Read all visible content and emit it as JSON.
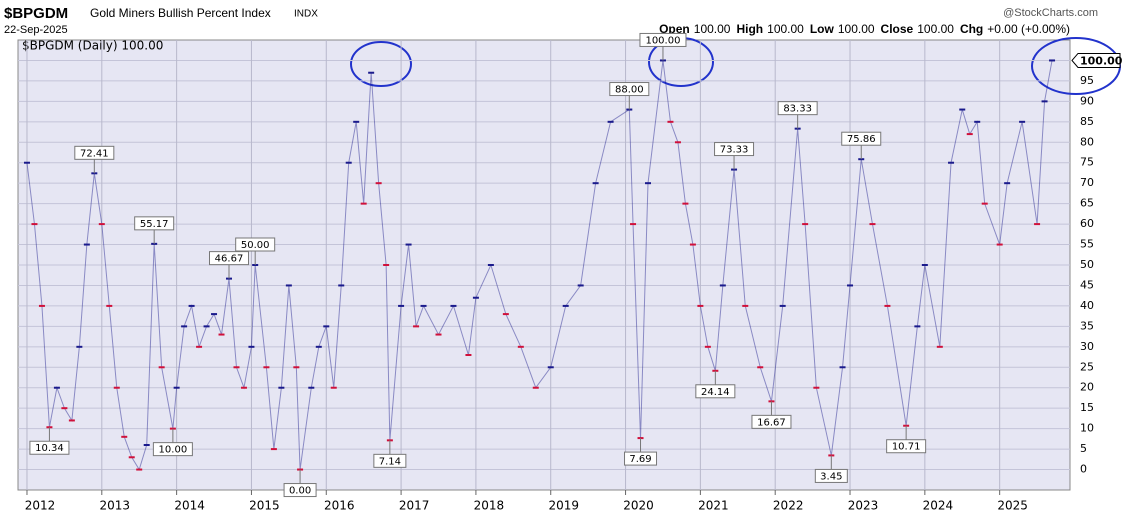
{
  "chart_data": {
    "type": "dash",
    "symbol": "$BPGDM",
    "title": "Gold Miners Bullish Percent Index",
    "exchange": "INDX",
    "date": "22-Sep-2025",
    "source": "@StockCharts.com",
    "quote": [
      [
        "Open",
        "100.00"
      ],
      [
        "High",
        "100.00"
      ],
      [
        "Low",
        "100.00"
      ],
      [
        "Close",
        "100.00"
      ],
      [
        "Chg",
        "+0.00 (+0.00%)"
      ]
    ],
    "legend_label": "$BPGDM (Daily) 100.00",
    "last_value": 100,
    "last_value_label": "100.00",
    "color": "#1a1a8c",
    "x": [
      2012.0,
      2012.1,
      2012.2,
      2012.3,
      2012.4,
      2012.5,
      2012.6,
      2012.7,
      2012.8,
      2012.9,
      2013.0,
      2013.1,
      2013.2,
      2013.3,
      2013.4,
      2013.5,
      2013.6,
      2013.7,
      2013.8,
      2013.95,
      2014.0,
      2014.1,
      2014.2,
      2014.3,
      2014.4,
      2014.5,
      2014.6,
      2014.7,
      2014.8,
      2014.9,
      2015.0,
      2015.05,
      2015.2,
      2015.3,
      2015.4,
      2015.5,
      2015.6,
      2015.65,
      2015.8,
      2015.9,
      2016.0,
      2016.1,
      2016.2,
      2016.3,
      2016.4,
      2016.5,
      2016.6,
      2016.7,
      2016.8,
      2016.85,
      2017.0,
      2017.1,
      2017.2,
      2017.3,
      2017.5,
      2017.7,
      2017.9,
      2018.0,
      2018.2,
      2018.4,
      2018.6,
      2018.8,
      2019.0,
      2019.2,
      2019.4,
      2019.6,
      2019.8,
      2020.05,
      2020.1,
      2020.2,
      2020.3,
      2020.5,
      2020.6,
      2020.7,
      2020.8,
      2020.9,
      2021.0,
      2021.1,
      2021.2,
      2021.3,
      2021.45,
      2021.6,
      2021.8,
      2021.95,
      2022.1,
      2022.3,
      2022.4,
      2022.55,
      2022.75,
      2022.9,
      2023.0,
      2023.15,
      2023.3,
      2023.5,
      2023.75,
      2023.9,
      2024.0,
      2024.2,
      2024.35,
      2024.5,
      2024.6,
      2024.7,
      2024.8,
      2025.0,
      2025.1,
      2025.3,
      2025.5,
      2025.6,
      2025.7
    ],
    "values": [
      75,
      60,
      40,
      10.34,
      20,
      15,
      12,
      30,
      55,
      72.41,
      60,
      40,
      20,
      8,
      3,
      0,
      6,
      55.17,
      25,
      10,
      20,
      35,
      40,
      30,
      35,
      38,
      33,
      46.67,
      25,
      20,
      30,
      50,
      25,
      5,
      20,
      45,
      25,
      0,
      20,
      30,
      35,
      20,
      45,
      75,
      85,
      65,
      97,
      70,
      50,
      7.14,
      40,
      55,
      35,
      40,
      33,
      40,
      28,
      42,
      50,
      38,
      30,
      20,
      25,
      40,
      45,
      70,
      85,
      88,
      60,
      7.69,
      70,
      100,
      85,
      80,
      65,
      55,
      40,
      30,
      24.14,
      45,
      73.33,
      40,
      25,
      16.67,
      40,
      83.33,
      60,
      20,
      3.45,
      25,
      45,
      75.86,
      60,
      40,
      10.71,
      35,
      50,
      30,
      75,
      88,
      82,
      85,
      65,
      55,
      70,
      85,
      60,
      90,
      100
    ],
    "annotations": [
      {
        "x": 2012.3,
        "value": 10.34,
        "label": "10.34",
        "side": "below"
      },
      {
        "x": 2012.9,
        "value": 72.41,
        "label": "72.41",
        "side": "above"
      },
      {
        "x": 2013.7,
        "value": 55.17,
        "label": "55.17",
        "side": "above"
      },
      {
        "x": 2013.95,
        "value": 10,
        "label": "10.00",
        "side": "below"
      },
      {
        "x": 2014.7,
        "value": 46.67,
        "label": "46.67",
        "side": "above"
      },
      {
        "x": 2015.05,
        "value": 50,
        "label": "50.00",
        "side": "above"
      },
      {
        "x": 2015.65,
        "value": 0,
        "label": "0.00",
        "side": "below"
      },
      {
        "x": 2016.85,
        "value": 7.14,
        "label": "7.14",
        "side": "below"
      },
      {
        "x": 2020.05,
        "value": 88,
        "label": "88.00",
        "side": "above"
      },
      {
        "x": 2020.5,
        "value": 100,
        "label": "100.00",
        "side": "above"
      },
      {
        "x": 2020.2,
        "value": 7.69,
        "label": "7.69",
        "side": "below"
      },
      {
        "x": 2021.2,
        "value": 24.14,
        "label": "24.14",
        "side": "below"
      },
      {
        "x": 2021.45,
        "value": 73.33,
        "label": "73.33",
        "side": "above"
      },
      {
        "x": 2021.95,
        "value": 16.67,
        "label": "16.67",
        "side": "below"
      },
      {
        "x": 2022.3,
        "value": 83.33,
        "label": "83.33",
        "side": "above"
      },
      {
        "x": 2022.75,
        "value": 3.45,
        "label": "3.45",
        "side": "below"
      },
      {
        "x": 2023.15,
        "value": 75.86,
        "label": "75.86",
        "side": "above"
      },
      {
        "x": 2023.75,
        "value": 10.71,
        "label": "10.71",
        "side": "below"
      }
    ],
    "xlim": [
      2011.88,
      2025.94
    ],
    "xticks": [
      2012,
      2013,
      2014,
      2015,
      2016,
      2017,
      2018,
      2019,
      2020,
      2021,
      2022,
      2023,
      2024,
      2025
    ],
    "ylim": [
      -5,
      105
    ],
    "yticks": [
      0,
      5,
      10,
      15,
      20,
      25,
      30,
      35,
      40,
      45,
      50,
      55,
      60,
      65,
      70,
      75,
      80,
      85,
      90,
      95,
      100
    ],
    "grid": true
  }
}
